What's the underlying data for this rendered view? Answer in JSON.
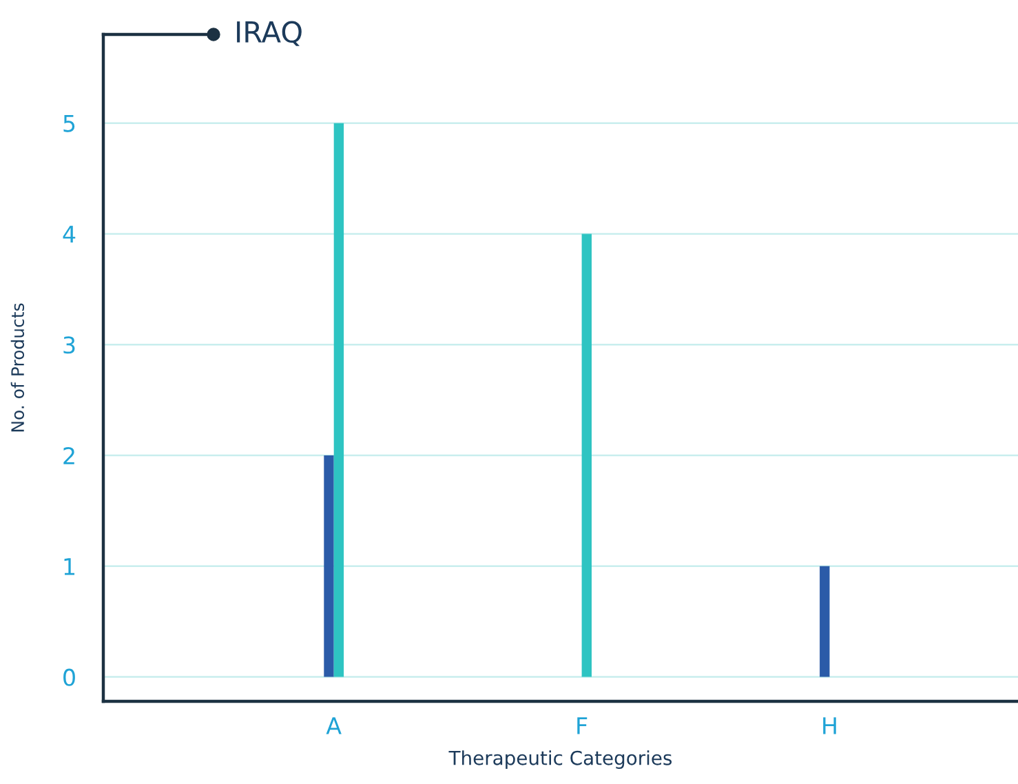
{
  "chart_data": {
    "type": "bar",
    "title": "IRAQ",
    "xlabel": "Therapeutic Categories",
    "ylabel": "No. of Products",
    "categories": [
      "A",
      "F",
      "H"
    ],
    "series": [
      {
        "color": "#2b5ba8",
        "values": [
          2,
          0,
          1
        ]
      },
      {
        "color": "#2ec4c2",
        "values": [
          5,
          4,
          0
        ]
      }
    ],
    "ylim": [
      -0.22,
      5.8
    ],
    "yticks": [
      0,
      1,
      2,
      3,
      4,
      5
    ],
    "grid": "y",
    "legend": false
  }
}
